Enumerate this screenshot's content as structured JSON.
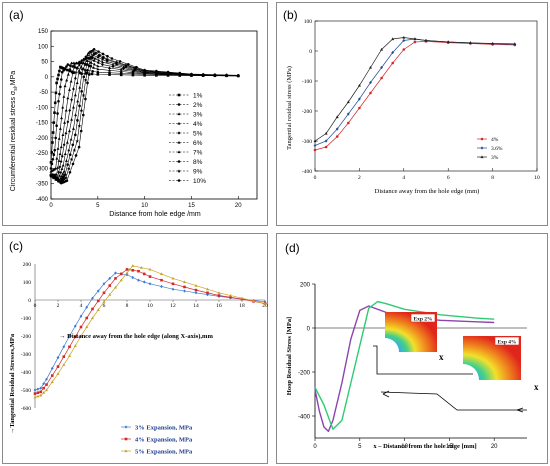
{
  "panels": {
    "a": {
      "label": "(a)",
      "xlabel": "Distance from hole edge /mm",
      "ylabel": "Circumferential residual stress σ",
      "ylabel_sub": "sl",
      "ylabel_unit": ",MPa"
    },
    "b": {
      "label": "(b)",
      "xlabel": "Distance away from the hole edge (mm)",
      "ylabel": "Tangential residual stress (MPa)"
    },
    "c": {
      "label": "(c)",
      "xlabel": "→ Distance away from the hole edge (along X-axis),mm",
      "ylabel": "→Tangential Residual Stresses,MPa"
    },
    "d": {
      "label": "(d)",
      "xlabel": "x – Distance from the hole edge [mm]",
      "ylabel": "Hoop Residual Stress [MPa]",
      "inset1_label": "Exp 2%",
      "inset2_label": "Exp 4%",
      "axis_x_letter": "x"
    }
  },
  "chart_data": [
    {
      "panel": "a",
      "type": "line",
      "xlabel": "Distance from hole edge /mm",
      "ylabel": "Circumferential residual stress σsl ,MPa",
      "xlim": [
        0,
        22
      ],
      "ylim": [
        -400,
        150
      ],
      "xticks": [
        0,
        5,
        10,
        15,
        20
      ],
      "yticks": [
        -400,
        -350,
        -300,
        -250,
        -200,
        -150,
        -100,
        -50,
        0,
        50,
        100,
        150
      ],
      "legend_position": "center-right",
      "series": [
        {
          "name": "1%",
          "x": [
            0,
            0.3,
            0.6,
            1.0,
            1.5,
            2.5,
            5,
            10,
            15,
            20
          ],
          "values": [
            -280,
            -150,
            -20,
            32,
            25,
            14,
            8,
            5,
            4,
            3
          ]
        },
        {
          "name": "2%",
          "x": [
            0,
            0.4,
            0.8,
            1.2,
            1.8,
            2.8,
            5,
            10,
            15,
            20
          ],
          "values": [
            -300,
            -240,
            -80,
            15,
            40,
            28,
            15,
            8,
            5,
            3
          ]
        },
        {
          "name": "3%",
          "x": [
            0,
            0.5,
            1.0,
            1.5,
            2.2,
            3.2,
            5,
            10,
            15,
            20
          ],
          "values": [
            -310,
            -300,
            -170,
            -30,
            45,
            45,
            25,
            10,
            6,
            4
          ]
        },
        {
          "name": "4%",
          "x": [
            0,
            0.6,
            1.1,
            1.8,
            2.5,
            3.5,
            5,
            10,
            15,
            20
          ],
          "values": [
            -320,
            -320,
            -230,
            -70,
            40,
            58,
            35,
            12,
            6,
            4
          ]
        },
        {
          "name": "5%",
          "x": [
            0,
            0.7,
            1.2,
            2.0,
            2.8,
            3.7,
            5.5,
            10,
            15,
            20
          ],
          "values": [
            -320,
            -330,
            -260,
            -110,
            30,
            65,
            40,
            14,
            7,
            4
          ]
        },
        {
          "name": "6%",
          "x": [
            0,
            0.8,
            1.3,
            2.2,
            3.0,
            3.9,
            5.5,
            10,
            15,
            20
          ],
          "values": [
            -320,
            -335,
            -290,
            -140,
            20,
            72,
            48,
            15,
            7,
            4
          ]
        },
        {
          "name": "7%",
          "x": [
            0,
            0.9,
            1.4,
            2.4,
            3.3,
            4.0,
            6,
            10,
            15,
            20
          ],
          "values": [
            -320,
            -340,
            -310,
            -170,
            10,
            78,
            50,
            17,
            8,
            4
          ]
        },
        {
          "name": "8%",
          "x": [
            0,
            1.0,
            1.5,
            2.6,
            3.5,
            4.2,
            6,
            10,
            15,
            20
          ],
          "values": [
            -320,
            -343,
            -320,
            -190,
            0,
            82,
            55,
            18,
            8,
            4
          ]
        },
        {
          "name": "9%",
          "x": [
            0,
            1.0,
            1.6,
            2.8,
            3.7,
            4.4,
            6,
            10,
            15,
            20
          ],
          "values": [
            -325,
            -345,
            -330,
            -210,
            -10,
            86,
            58,
            20,
            8,
            4
          ]
        },
        {
          "name": "10%",
          "x": [
            0,
            1.1,
            1.7,
            3.0,
            3.9,
            4.6,
            6.5,
            10,
            15,
            20
          ],
          "values": [
            -325,
            -348,
            -340,
            -230,
            -20,
            90,
            60,
            22,
            9,
            5
          ]
        }
      ]
    },
    {
      "panel": "b",
      "type": "line",
      "xlabel": "Distance away from the hole edge (mm)",
      "ylabel": "Tangential residual stress (MPa)",
      "xlim": [
        0,
        10
      ],
      "ylim": [
        -400,
        100
      ],
      "xticks": [
        0,
        2,
        4,
        6,
        8,
        10
      ],
      "yticks": [
        -400,
        -300,
        -200,
        -100,
        0,
        100
      ],
      "legend_position": "bottom-right",
      "series": [
        {
          "name": "4%",
          "x": [
            0,
            0.5,
            1,
            1.5,
            2,
            2.5,
            3,
            3.5,
            4,
            4.5,
            5,
            6,
            7,
            8,
            9
          ],
          "values": [
            -330,
            -320,
            -285,
            -240,
            -190,
            -140,
            -90,
            -40,
            5,
            30,
            32,
            28,
            25,
            22,
            20
          ]
        },
        {
          "name": "3.6%",
          "x": [
            0,
            0.5,
            1,
            1.5,
            2,
            2.5,
            3,
            3.5,
            4,
            4.5,
            5,
            6,
            7,
            8,
            9
          ],
          "values": [
            -315,
            -300,
            -260,
            -210,
            -160,
            -105,
            -55,
            -5,
            35,
            40,
            35,
            30,
            27,
            24,
            22
          ]
        },
        {
          "name": "3%",
          "x": [
            0,
            0.5,
            1,
            1.5,
            2,
            2.5,
            3,
            3.5,
            4,
            4.5,
            5,
            6,
            7,
            8,
            9
          ],
          "values": [
            -300,
            -275,
            -220,
            -170,
            -115,
            -55,
            5,
            40,
            45,
            40,
            35,
            30,
            27,
            25,
            24
          ]
        }
      ]
    },
    {
      "panel": "c",
      "type": "line",
      "xlabel": "→ Distance away from the hole edge (along X-axis),mm",
      "ylabel": "→Tangential Residual Stresses,MPa",
      "xlim": [
        0,
        20
      ],
      "ylim": [
        -600,
        200
      ],
      "xticks": [
        0,
        2,
        4,
        6,
        8,
        10,
        12,
        14,
        16,
        18,
        20
      ],
      "yticks": [
        -600,
        -500,
        -400,
        -300,
        -200,
        -100,
        0,
        100,
        200
      ],
      "legend_position": "bottom-right",
      "series": [
        {
          "name": "3% Expansion, MPa",
          "x": [
            0,
            0.5,
            1,
            2,
            3,
            4,
            5,
            6,
            7,
            8,
            9,
            10,
            12,
            14,
            16,
            18,
            20
          ],
          "values": [
            -500,
            -490,
            -440,
            -320,
            -200,
            -90,
            10,
            90,
            150,
            140,
            110,
            90,
            60,
            40,
            20,
            5,
            -10
          ]
        },
        {
          "name": "4% Expansion, MPa",
          "x": [
            0,
            0.5,
            1,
            2,
            3,
            4,
            5,
            6,
            7,
            8,
            9,
            10,
            12,
            14,
            16,
            18,
            20
          ],
          "values": [
            -520,
            -510,
            -470,
            -370,
            -260,
            -150,
            -50,
            40,
            120,
            170,
            160,
            130,
            90,
            55,
            25,
            5,
            -20
          ]
        },
        {
          "name": "5% Expansion, MPa",
          "x": [
            0,
            0.5,
            1,
            2,
            3,
            4,
            5,
            6,
            7,
            8,
            8.5,
            10,
            12,
            14,
            16,
            18,
            20
          ],
          "values": [
            -540,
            -530,
            -500,
            -410,
            -310,
            -200,
            -100,
            -10,
            70,
            150,
            190,
            170,
            120,
            80,
            40,
            10,
            -20
          ]
        }
      ]
    },
    {
      "panel": "d",
      "type": "line",
      "xlabel": "x – Distance from the hole edge [mm]",
      "ylabel": "Hoop Residual Stress [MPa]",
      "xlim": [
        0,
        25
      ],
      "ylim": [
        -500,
        200
      ],
      "xticks": [
        0,
        5,
        10,
        15,
        20
      ],
      "yticks": [
        -400,
        -200,
        0,
        200
      ],
      "series": [
        {
          "name": "Exp 2%",
          "color": "#8e44ad",
          "x": [
            0,
            0.5,
            1,
            1.5,
            2,
            3,
            4,
            5,
            6,
            8,
            10,
            14,
            18,
            20
          ],
          "values": [
            -280,
            -380,
            -450,
            -470,
            -420,
            -250,
            -50,
            80,
            100,
            70,
            50,
            35,
            28,
            25
          ]
        },
        {
          "name": "Exp 4%",
          "color": "#2ecc71",
          "x": [
            0,
            1,
            2,
            3,
            4,
            5,
            6,
            7,
            8,
            10,
            14,
            18,
            20
          ],
          "values": [
            -270,
            -350,
            -460,
            -420,
            -250,
            -80,
            90,
            120,
            110,
            85,
            60,
            45,
            40
          ]
        }
      ]
    }
  ]
}
